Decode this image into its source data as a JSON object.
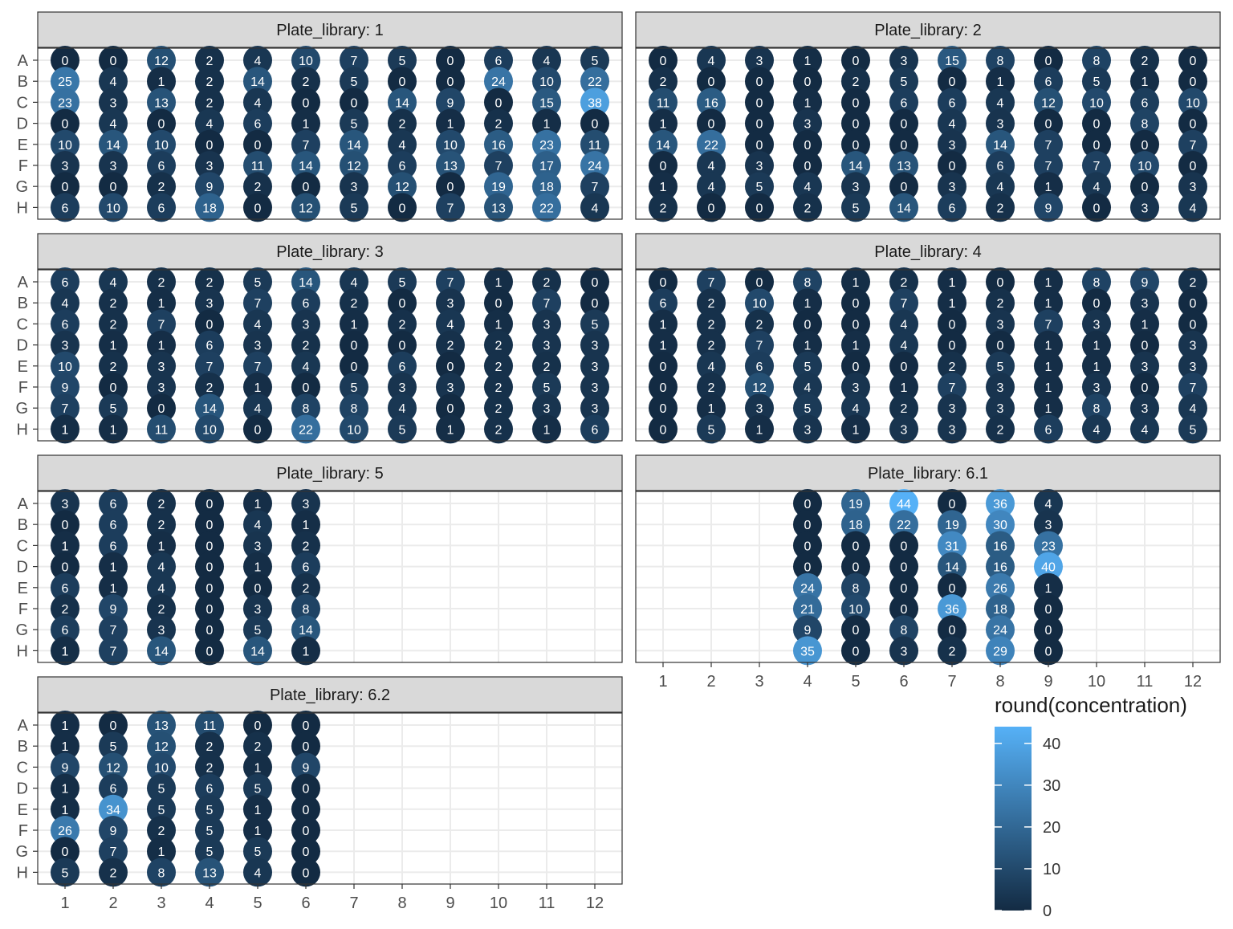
{
  "chart_data": {
    "type": "scatter",
    "facet_label_prefix": "Plate_library: ",
    "x_ticks": [
      "1",
      "2",
      "3",
      "4",
      "5",
      "6",
      "7",
      "8",
      "9",
      "10",
      "11",
      "12"
    ],
    "y_ticks": [
      "A",
      "B",
      "C",
      "D",
      "E",
      "F",
      "G",
      "H"
    ],
    "legend": {
      "title": "round(concentration)",
      "ticks": [
        0,
        10,
        20,
        30,
        40
      ],
      "range": [
        0,
        44
      ],
      "low_color": "#132B43",
      "high_color": "#56B1F7",
      "placement": "right"
    },
    "grid": true,
    "panels": [
      {
        "label": "1",
        "columns": [
          1,
          2,
          3,
          4,
          5,
          6,
          7,
          8,
          9,
          10,
          11,
          12
        ],
        "values": [
          [
            0,
            0,
            12,
            2,
            4,
            10,
            7,
            5,
            0,
            6,
            4,
            5
          ],
          [
            25,
            4,
            1,
            2,
            14,
            2,
            5,
            0,
            0,
            24,
            10,
            22
          ],
          [
            23,
            3,
            13,
            2,
            4,
            0,
            0,
            14,
            9,
            0,
            15,
            38
          ],
          [
            0,
            4,
            0,
            4,
            6,
            1,
            5,
            2,
            1,
            2,
            1,
            0
          ],
          [
            10,
            14,
            10,
            0,
            0,
            7,
            14,
            4,
            10,
            16,
            23,
            11
          ],
          [
            3,
            3,
            6,
            3,
            11,
            14,
            12,
            6,
            13,
            7,
            17,
            24
          ],
          [
            0,
            0,
            2,
            9,
            2,
            0,
            3,
            12,
            0,
            19,
            18,
            7
          ],
          [
            6,
            10,
            6,
            18,
            0,
            12,
            5,
            0,
            7,
            13,
            22,
            4
          ]
        ]
      },
      {
        "label": "2",
        "columns": [
          1,
          2,
          3,
          4,
          5,
          6,
          7,
          8,
          9,
          10,
          11,
          12
        ],
        "values": [
          [
            0,
            4,
            3,
            1,
            0,
            3,
            15,
            8,
            0,
            8,
            2,
            0
          ],
          [
            2,
            0,
            0,
            0,
            2,
            5,
            0,
            1,
            6,
            5,
            1,
            0
          ],
          [
            11,
            16,
            0,
            1,
            0,
            6,
            6,
            4,
            12,
            10,
            6,
            10
          ],
          [
            1,
            0,
            0,
            3,
            0,
            0,
            4,
            3,
            0,
            0,
            8,
            0
          ],
          [
            14,
            22,
            0,
            0,
            0,
            0,
            3,
            14,
            7,
            0,
            0,
            7
          ],
          [
            0,
            4,
            3,
            0,
            14,
            13,
            0,
            6,
            7,
            7,
            10,
            0
          ],
          [
            1,
            4,
            5,
            4,
            3,
            0,
            3,
            4,
            1,
            4,
            0,
            3
          ],
          [
            2,
            0,
            0,
            2,
            5,
            14,
            6,
            2,
            9,
            0,
            3,
            4
          ]
        ]
      },
      {
        "label": "3",
        "columns": [
          1,
          2,
          3,
          4,
          5,
          6,
          7,
          8,
          9,
          10,
          11,
          12
        ],
        "values": [
          [
            6,
            4,
            2,
            2,
            5,
            14,
            4,
            5,
            7,
            1,
            2,
            0
          ],
          [
            4,
            2,
            1,
            3,
            7,
            6,
            2,
            0,
            3,
            0,
            7,
            0
          ],
          [
            6,
            2,
            7,
            0,
            4,
            3,
            1,
            2,
            4,
            1,
            3,
            5
          ],
          [
            3,
            1,
            1,
            6,
            3,
            2,
            0,
            0,
            2,
            2,
            3,
            3
          ],
          [
            10,
            2,
            3,
            7,
            7,
            4,
            0,
            6,
            0,
            2,
            2,
            3
          ],
          [
            9,
            0,
            3,
            2,
            1,
            0,
            5,
            3,
            3,
            2,
            5,
            3
          ],
          [
            7,
            5,
            0,
            14,
            4,
            8,
            8,
            4,
            0,
            2,
            3,
            3
          ],
          [
            1,
            1,
            11,
            10,
            0,
            22,
            10,
            5,
            1,
            2,
            1,
            6
          ]
        ]
      },
      {
        "label": "4",
        "columns": [
          1,
          2,
          3,
          4,
          5,
          6,
          7,
          8,
          9,
          10,
          11,
          12
        ],
        "values": [
          [
            0,
            7,
            0,
            8,
            1,
            2,
            1,
            0,
            1,
            8,
            9,
            2
          ],
          [
            6,
            2,
            10,
            1,
            0,
            7,
            1,
            2,
            1,
            0,
            3,
            0
          ],
          [
            1,
            2,
            2,
            0,
            0,
            4,
            0,
            3,
            7,
            3,
            1,
            0
          ],
          [
            1,
            2,
            7,
            1,
            1,
            4,
            0,
            0,
            1,
            1,
            0,
            3
          ],
          [
            0,
            4,
            6,
            5,
            0,
            0,
            2,
            5,
            1,
            1,
            3,
            3
          ],
          [
            0,
            2,
            12,
            4,
            3,
            1,
            7,
            3,
            1,
            3,
            0,
            7
          ],
          [
            0,
            1,
            3,
            5,
            4,
            2,
            3,
            3,
            1,
            8,
            3,
            4
          ],
          [
            0,
            5,
            1,
            3,
            1,
            3,
            3,
            2,
            6,
            4,
            4,
            5
          ]
        ]
      },
      {
        "label": "5",
        "columns": [
          1,
          2,
          3,
          4,
          5,
          6
        ],
        "values": [
          [
            3,
            6,
            2,
            0,
            1,
            3
          ],
          [
            0,
            6,
            2,
            0,
            4,
            1
          ],
          [
            1,
            6,
            1,
            0,
            3,
            2
          ],
          [
            0,
            1,
            4,
            0,
            1,
            6
          ],
          [
            6,
            1,
            4,
            0,
            0,
            2
          ],
          [
            2,
            9,
            2,
            0,
            3,
            8
          ],
          [
            6,
            7,
            3,
            0,
            5,
            14
          ],
          [
            1,
            7,
            14,
            0,
            14,
            1
          ]
        ]
      },
      {
        "label": "6.1",
        "columns": [
          4,
          5,
          6,
          7,
          8,
          9
        ],
        "values": [
          [
            0,
            19,
            44,
            0,
            36,
            4
          ],
          [
            0,
            18,
            22,
            19,
            30,
            3
          ],
          [
            0,
            0,
            0,
            31,
            16,
            23
          ],
          [
            0,
            0,
            0,
            14,
            16,
            40
          ],
          [
            24,
            8,
            0,
            0,
            26,
            1
          ],
          [
            21,
            10,
            0,
            36,
            18,
            0
          ],
          [
            9,
            0,
            8,
            0,
            24,
            0
          ],
          [
            35,
            0,
            3,
            2,
            29,
            0
          ]
        ]
      },
      {
        "label": "6.2",
        "columns": [
          1,
          2,
          3,
          4,
          5,
          6
        ],
        "values": [
          [
            1,
            0,
            13,
            11,
            0,
            0
          ],
          [
            1,
            5,
            12,
            2,
            2,
            0
          ],
          [
            9,
            12,
            10,
            2,
            1,
            9
          ],
          [
            1,
            6,
            5,
            6,
            5,
            0
          ],
          [
            1,
            34,
            5,
            5,
            1,
            0
          ],
          [
            26,
            9,
            2,
            5,
            1,
            0
          ],
          [
            0,
            7,
            1,
            5,
            5,
            0
          ],
          [
            5,
            2,
            8,
            13,
            4,
            0
          ]
        ]
      }
    ]
  }
}
